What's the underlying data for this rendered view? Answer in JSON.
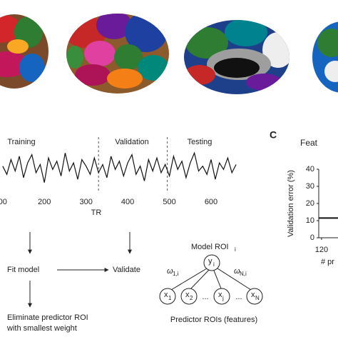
{
  "panel_label": "C",
  "chart_data": [
    {
      "type": "line",
      "regions": [
        "Training",
        "Validation",
        "Testing"
      ],
      "dividers": [
        330,
        495
      ],
      "x": [
        100,
        110,
        120,
        130,
        140,
        150,
        160,
        170,
        180,
        190,
        200,
        210,
        220,
        230,
        240,
        250,
        260,
        270,
        280,
        290,
        300,
        310,
        320,
        330,
        340,
        350,
        360,
        370,
        380,
        390,
        400,
        410,
        420,
        430,
        440,
        450,
        460,
        470,
        480,
        490,
        500,
        510,
        520,
        530,
        540,
        550,
        560,
        570,
        580,
        590,
        600,
        610,
        620,
        630,
        640,
        650,
        660
      ],
      "values": [
        0.1,
        -0.4,
        0.5,
        -0.2,
        0.7,
        -0.6,
        0.3,
        0.8,
        -0.3,
        0.2,
        -0.9,
        0.6,
        -0.1,
        0.4,
        -0.5,
        0.9,
        -0.2,
        0.3,
        -0.7,
        0.5,
        0.1,
        -0.4,
        0.6,
        -0.3,
        0.2,
        -0.6,
        0.7,
        -0.1,
        0.4,
        -0.5,
        0.3,
        0.8,
        -0.4,
        0.1,
        -0.8,
        0.5,
        -0.2,
        0.6,
        -0.3,
        0.2,
        -0.5,
        0.7,
        -0.1,
        0.4,
        -0.6,
        0.3,
        0.9,
        -0.2,
        0.1,
        -0.4,
        0.5,
        -0.7,
        0.3,
        -0.1,
        0.6,
        -0.3,
        0.2
      ],
      "color": "#111111",
      "xlim": [
        97,
        665
      ],
      "ylim": [
        -1,
        1
      ],
      "xticks": [
        {
          "value": 100,
          "label": "00"
        },
        200,
        300,
        400,
        500,
        600
      ],
      "xlabel": "TR"
    },
    {
      "type": "line",
      "title": "Feat",
      "x": [
        118,
        140
      ],
      "values": [
        11.5,
        11.5
      ],
      "color": "#111111",
      "xlim": [
        118,
        140
      ],
      "ylim": [
        0,
        40
      ],
      "yticks": [
        0,
        10,
        20,
        30,
        40
      ],
      "xticks": [
        120
      ],
      "ylabel": "Validation error (%)",
      "xlabel": "# pr"
    }
  ],
  "flow": {
    "fit": "Fit model",
    "validate": "Validate",
    "eliminate": [
      "Eliminate predictor ROI",
      "with smallest weight"
    ]
  },
  "network": {
    "model_label": "Model ROI",
    "model_sub": "i",
    "target": {
      "label": "y",
      "sub": "i"
    },
    "weights": [
      {
        "label": "ω",
        "sub": "1,i"
      },
      {
        "label": "ω",
        "sub": "N,i"
      }
    ],
    "nodes": [
      {
        "label": "x",
        "sub": "1"
      },
      {
        "label": "x",
        "sub": "2"
      },
      {
        "label": "x",
        "sub": "j"
      },
      {
        "label": "x",
        "sub": "N"
      }
    ],
    "ellipsis": "...",
    "caption": "Predictor ROIs (features)"
  }
}
